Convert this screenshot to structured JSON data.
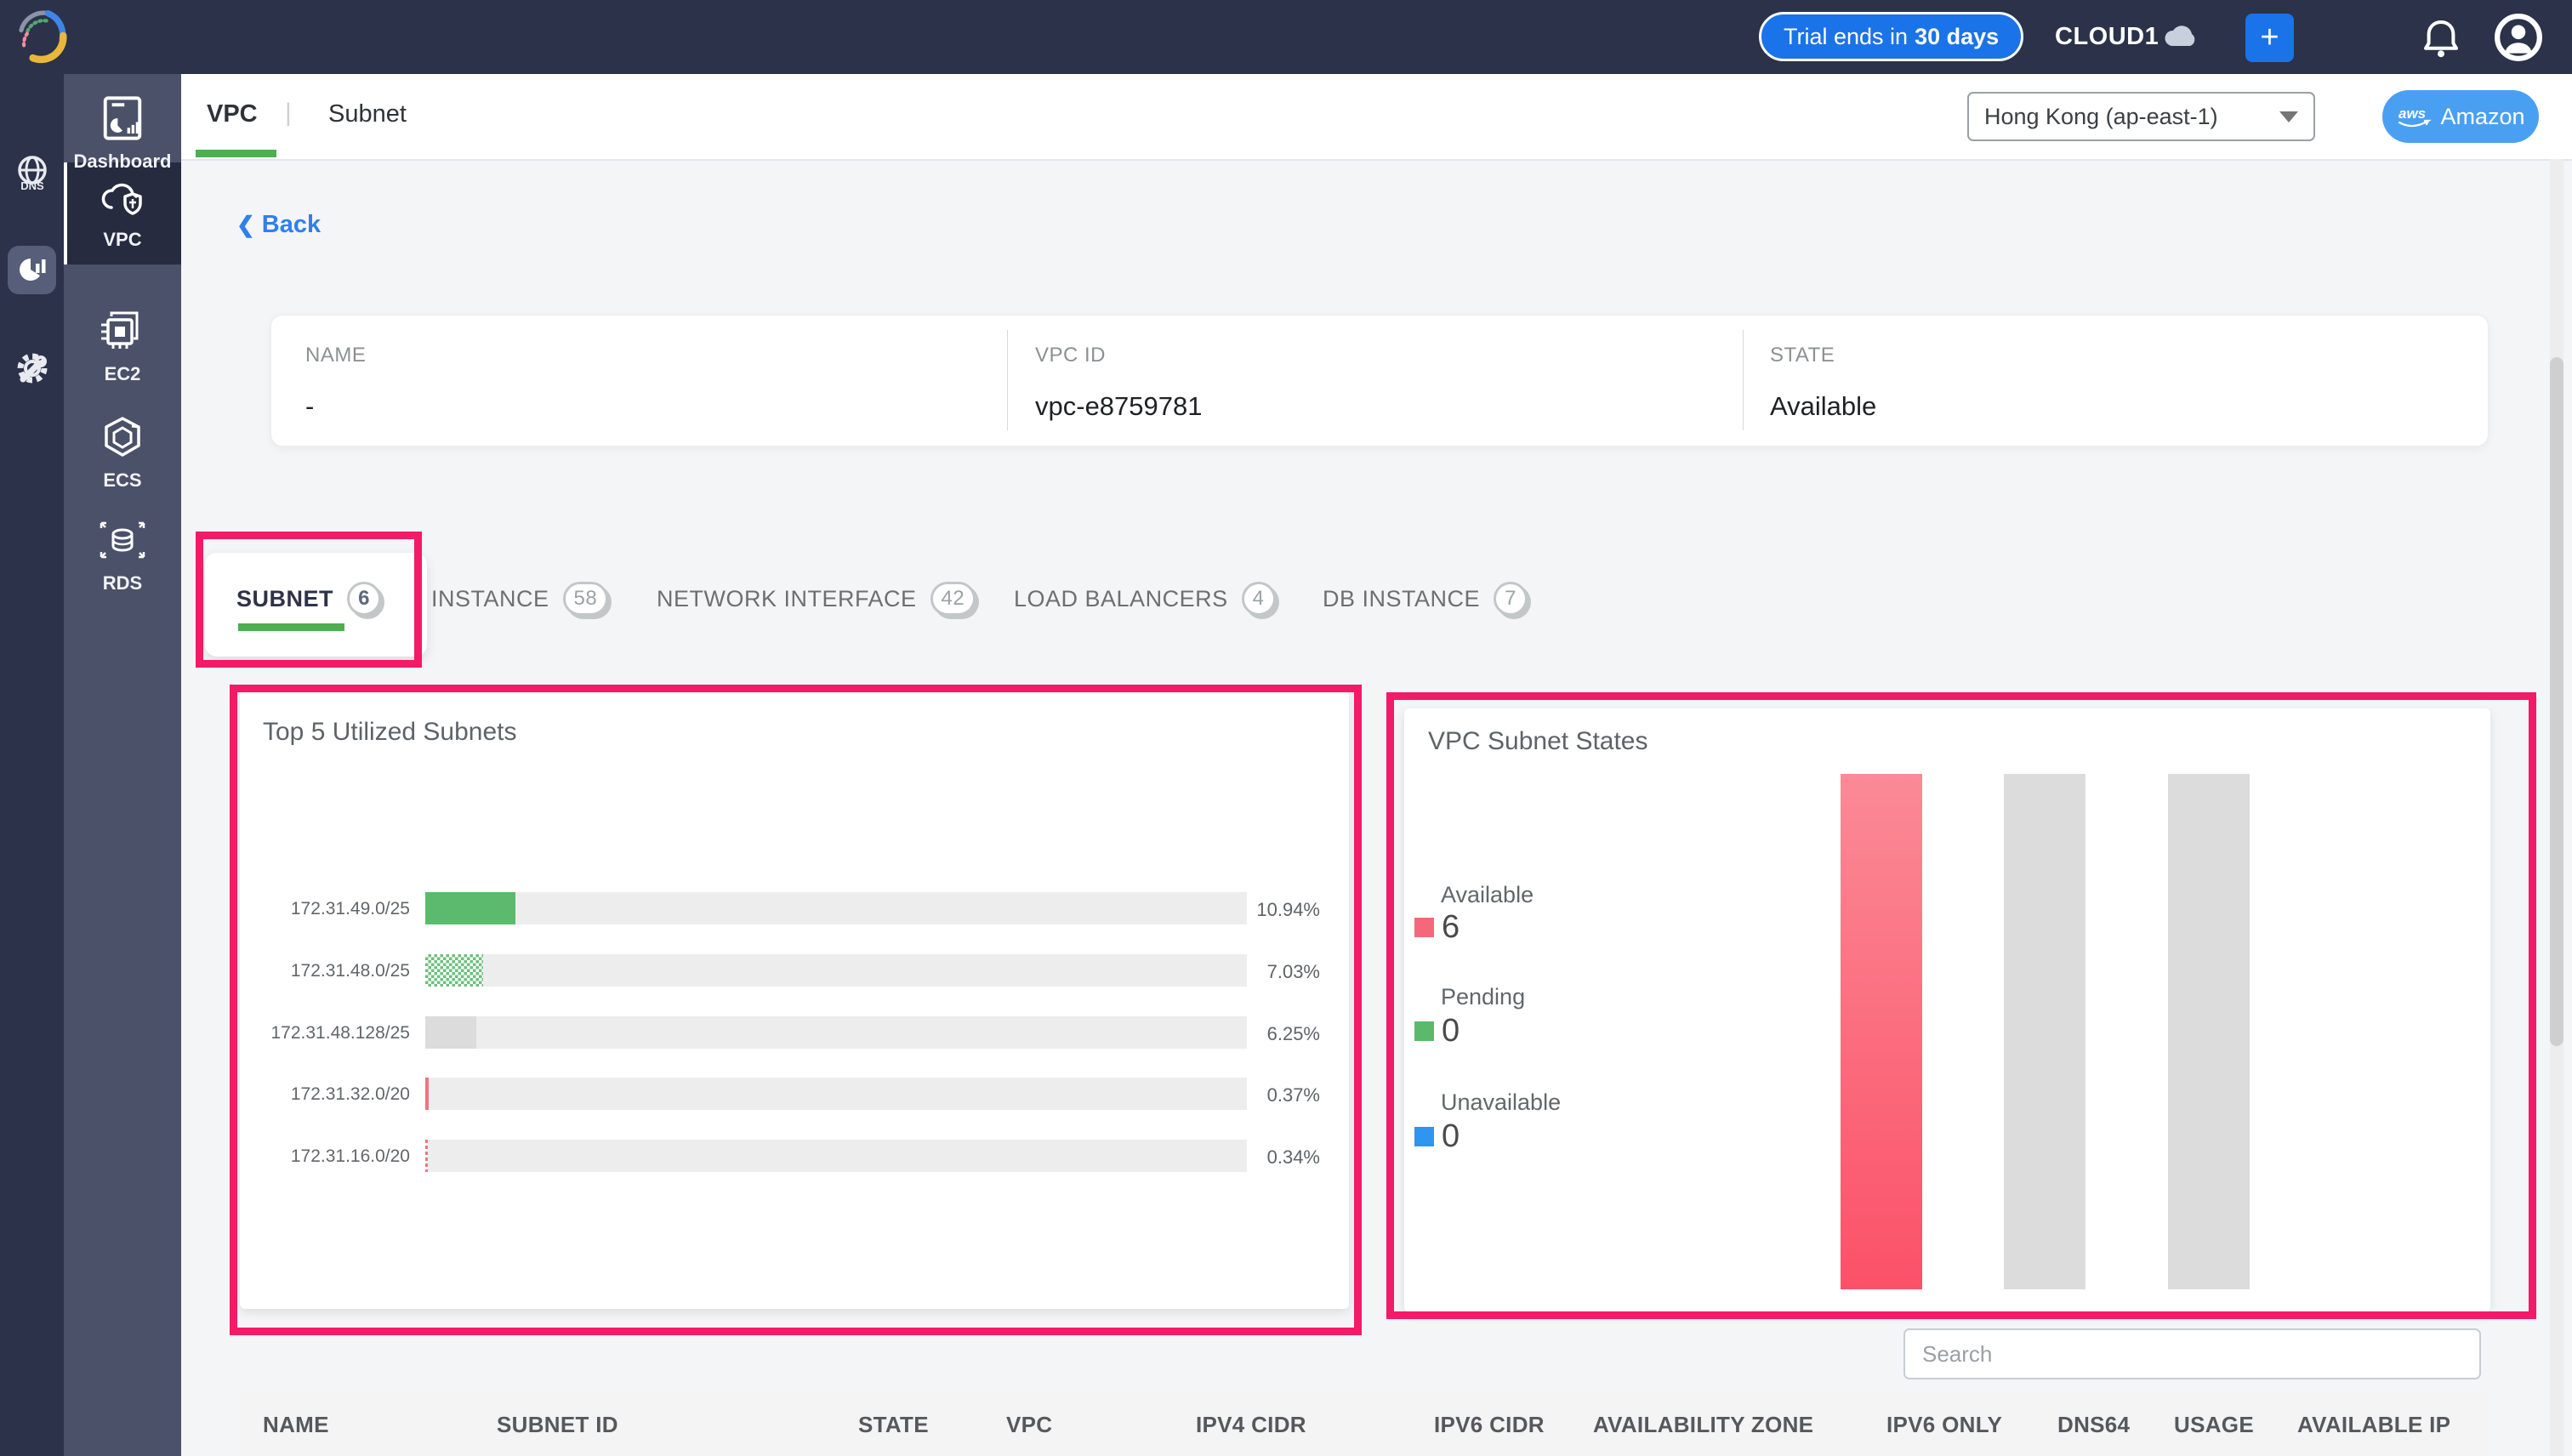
{
  "topbar": {
    "trial_prefix": "Trial ends in",
    "trial_bold": "30 days",
    "org": "CLOUD1",
    "plus_label": "+"
  },
  "subheader": {
    "tabs": [
      {
        "label": "VPC"
      },
      {
        "label": "Subnet"
      }
    ],
    "separator": "|",
    "region": "Hong Kong (ap-east-1)",
    "provider": "Amazon",
    "provider_logo": "aws"
  },
  "sidebar": {
    "rail_items": [
      {
        "name": "dns"
      },
      {
        "name": "analytics"
      },
      {
        "name": "settings"
      }
    ],
    "collapse": "«",
    "items": [
      {
        "label": "Dashboard",
        "active": false
      },
      {
        "label": "VPC",
        "active": true
      },
      {
        "label": "EC2",
        "active": false
      },
      {
        "label": "ECS",
        "active": false
      },
      {
        "label": "RDS",
        "active": false
      }
    ]
  },
  "back_label": "Back",
  "info": {
    "fields": [
      {
        "label": "NAME",
        "value": "-"
      },
      {
        "label": "VPC ID",
        "value": "vpc-e8759781"
      },
      {
        "label": "STATE",
        "value": "Available"
      }
    ]
  },
  "resource_tabs": [
    {
      "label": "SUBNET",
      "count": "6",
      "active": true
    },
    {
      "label": "INSTANCE",
      "count": "58",
      "active": false
    },
    {
      "label": "NETWORK INTERFACE",
      "count": "42",
      "active": false
    },
    {
      "label": "LOAD BALANCERS",
      "count": "4",
      "active": false
    },
    {
      "label": "DB INSTANCE",
      "count": "7",
      "active": false
    }
  ],
  "chart_data": [
    {
      "type": "bar",
      "orientation": "horizontal",
      "title": "Top 5 Utilized Subnets",
      "categories": [
        "172.31.49.0/25",
        "172.31.48.0/25",
        "172.31.48.128/25",
        "172.31.32.0/20",
        "172.31.16.0/20"
      ],
      "values": [
        10.94,
        7.03,
        6.25,
        0.37,
        0.34
      ],
      "value_labels": [
        "10.94%",
        "7.03%",
        "6.25%",
        "0.37%",
        "0.34%"
      ],
      "xlim": [
        0,
        100
      ],
      "bar_colors": [
        "#5bba6e",
        "#6cc07c",
        "#dcdcdc",
        "#f5737f",
        "#f5737f"
      ],
      "track_color": "#eeeded",
      "grid": false
    },
    {
      "type": "bar",
      "orientation": "vertical",
      "title": "VPC Subnet States",
      "categories": [
        "Available",
        "Pending",
        "Unavailable"
      ],
      "values": [
        6,
        0,
        0
      ],
      "legend": [
        {
          "label": "Available",
          "value": "6",
          "color": "#f5687c"
        },
        {
          "label": "Pending",
          "value": "0",
          "color": "#5cb96b"
        },
        {
          "label": "Unavailable",
          "value": "0",
          "color": "#2e96f1"
        }
      ],
      "bar_colors": [
        "linear-gradient(#fb8a96,#fb5168)",
        "#dcdcdc",
        "#dcdcdc"
      ],
      "legend_position": "left",
      "grid": false
    }
  ],
  "search": {
    "placeholder": "Search"
  },
  "table": {
    "columns": [
      "NAME",
      "SUBNET ID",
      "STATE",
      "VPC",
      "IPV4 CIDR",
      "IPV6 CIDR",
      "AVAILABILITY ZONE",
      "IPV6 ONLY",
      "DNS64",
      "USAGE",
      "AVAILABLE IP"
    ]
  },
  "annotation_color": "#f31a66"
}
